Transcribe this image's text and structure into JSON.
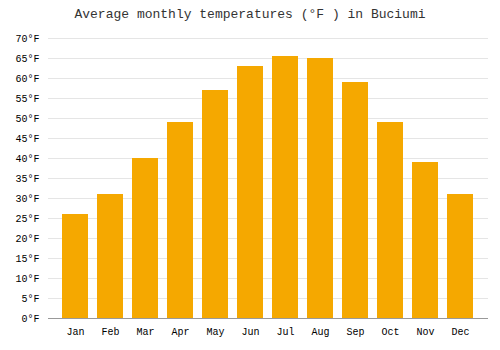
{
  "chart_data": {
    "type": "bar",
    "title": "Average monthly temperatures (°F ) in Buciumi",
    "categories": [
      "Jan",
      "Feb",
      "Mar",
      "Apr",
      "May",
      "Jun",
      "Jul",
      "Aug",
      "Sep",
      "Oct",
      "Nov",
      "Dec"
    ],
    "values": [
      26,
      31,
      40,
      49,
      57,
      63,
      65.5,
      65,
      59,
      49,
      39,
      31
    ],
    "color": "#F5A800",
    "ylim": [
      0,
      70
    ],
    "yticks": [
      {
        "value": 0,
        "label": "0°F"
      },
      {
        "value": 5,
        "label": "5°F"
      },
      {
        "value": 10,
        "label": "10°F"
      },
      {
        "value": 15,
        "label": "15°F"
      },
      {
        "value": 20,
        "label": "20°F"
      },
      {
        "value": 25,
        "label": "25°F"
      },
      {
        "value": 30,
        "label": "30°F"
      },
      {
        "value": 35,
        "label": "35°F"
      },
      {
        "value": 40,
        "label": "40°F"
      },
      {
        "value": 45,
        "label": "45°F"
      },
      {
        "value": 50,
        "label": "50°F"
      },
      {
        "value": 55,
        "label": "55°F"
      },
      {
        "value": 60,
        "label": "60°F"
      },
      {
        "value": 65,
        "label": "65°F"
      },
      {
        "value": 70,
        "label": "70°F"
      }
    ],
    "grid": true
  }
}
